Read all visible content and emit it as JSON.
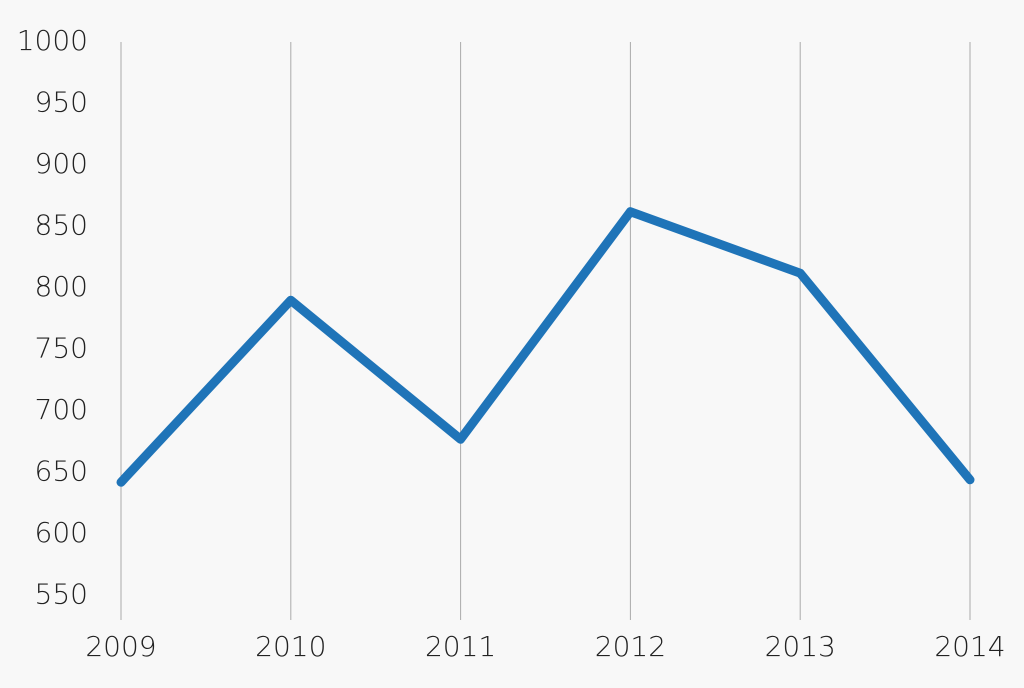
{
  "chart_data": {
    "type": "line",
    "categories": [
      "2009",
      "2010",
      "2011",
      "2012",
      "2013",
      "2014"
    ],
    "values": [
      642,
      790,
      677,
      862,
      812,
      644
    ],
    "color": "#1f74b8",
    "ylim": [
      530,
      1000
    ],
    "yticks": [
      550,
      600,
      650,
      700,
      750,
      800,
      850,
      900,
      950,
      1000
    ],
    "grid": true
  }
}
